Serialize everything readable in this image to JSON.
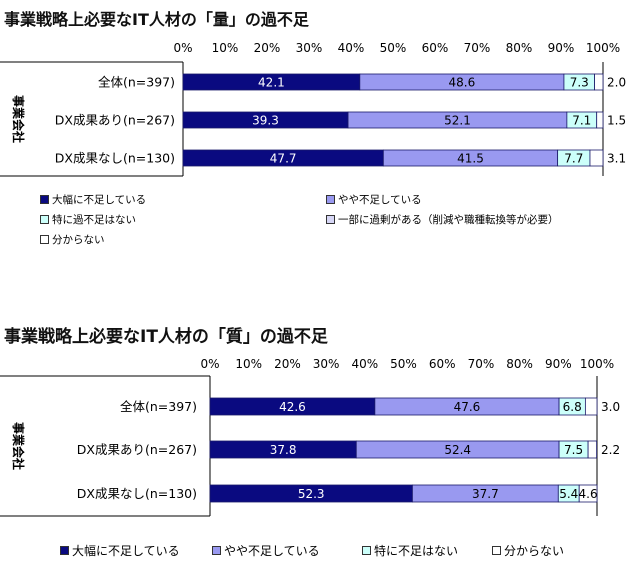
{
  "charts": [
    {
      "title": "事業戦略上必要なIT人材の「量」の過不足",
      "group_label": "事業会社",
      "ticks": [
        "0%",
        "10%",
        "20%",
        "30%",
        "40%",
        "50%",
        "60%",
        "70%",
        "80%",
        "90%",
        "100%"
      ],
      "legend_items": [
        "大幅に不足している",
        "やや不足している",
        "特に過不足はない",
        "一部に過剰がある（削減や職種転換等が必要）",
        "分からない"
      ]
    },
    {
      "title": "事業戦略上必要なIT人材の「質」の過不足",
      "group_label": "事業会社",
      "ticks": [
        "0%",
        "10%",
        "20%",
        "30%",
        "40%",
        "50%",
        "60%",
        "70%",
        "80%",
        "90%",
        "100%"
      ],
      "legend_items": [
        "大幅に不足している",
        "やや不足している",
        "特に不足はない",
        "分からない"
      ]
    }
  ],
  "colors": {
    "dark": "#0a0a80",
    "medium": "#9999f0",
    "light": "#ccfffa",
    "pale": "#d6d6f5",
    "white": "#ffffff"
  },
  "chart_data": [
    {
      "type": "bar",
      "orientation": "horizontal-stacked",
      "title": "事業戦略上必要なIT人材の「量」の過不足",
      "categories": [
        "全体(n=397)",
        "DX成果あり(n=267)",
        "DX成果なし(n=130)"
      ],
      "xlim": [
        0,
        100
      ],
      "series": [
        {
          "name": "大幅に不足している",
          "values": [
            42.1,
            39.3,
            47.7
          ],
          "color": "#0a0a80"
        },
        {
          "name": "やや不足している",
          "values": [
            48.6,
            52.1,
            41.5
          ],
          "color": "#9999f0"
        },
        {
          "name": "特に過不足はない",
          "values": [
            7.3,
            7.1,
            7.7
          ],
          "color": "#ccfffa"
        },
        {
          "name": "一部に過剰がある（削減や職種転換等が必要）",
          "values": [
            0,
            0,
            0
          ],
          "color": "#d6d6f5"
        },
        {
          "name": "分からない",
          "values": [
            2.0,
            1.5,
            3.1
          ],
          "color": "#ffffff"
        }
      ]
    },
    {
      "type": "bar",
      "orientation": "horizontal-stacked",
      "title": "事業戦略上必要なIT人材の「質」の過不足",
      "categories": [
        "全体(n=397)",
        "DX成果あり(n=267)",
        "DX成果なし(n=130)"
      ],
      "xlim": [
        0,
        100
      ],
      "series": [
        {
          "name": "大幅に不足している",
          "values": [
            42.6,
            37.8,
            52.3
          ],
          "color": "#0a0a80"
        },
        {
          "name": "やや不足している",
          "values": [
            47.6,
            52.4,
            37.7
          ],
          "color": "#9999f0"
        },
        {
          "name": "特に不足はない",
          "values": [
            6.8,
            7.5,
            5.4
          ],
          "color": "#ccfffa"
        },
        {
          "name": "分からない",
          "values": [
            3.0,
            2.2,
            4.6
          ],
          "color": "#ffffff"
        }
      ]
    }
  ]
}
